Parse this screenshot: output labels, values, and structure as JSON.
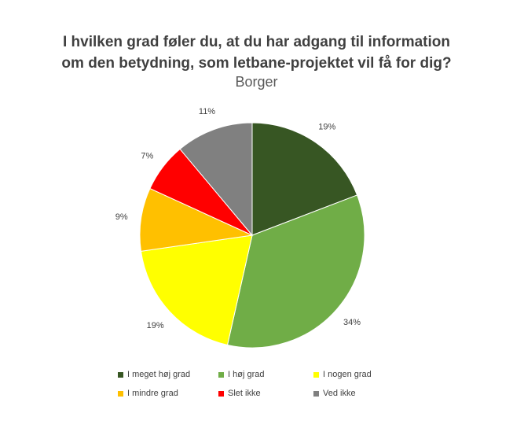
{
  "chart_data": {
    "type": "pie",
    "title_line1": "I hvilken grad føler du, at du har adgang til information",
    "title_line2": "om den betydning, som letbane-projektet vil få for dig?",
    "subtitle": "Borger",
    "slices": [
      {
        "label": "I meget høj grad",
        "value": 19,
        "display": "19%",
        "color": "#375623"
      },
      {
        "label": "I høj grad",
        "value": 34,
        "display": "34%",
        "color": "#70ad47"
      },
      {
        "label": "I nogen grad",
        "value": 19,
        "display": "19%",
        "color": "#ffff00"
      },
      {
        "label": "I mindre grad",
        "value": 9,
        "display": "9%",
        "color": "#ffc000"
      },
      {
        "label": "Slet ikke",
        "value": 7,
        "display": "7%",
        "color": "#ff0000"
      },
      {
        "label": "Ved ikke",
        "value": 11,
        "display": "11%",
        "color": "#808080"
      }
    ],
    "legend_position": "bottom"
  }
}
